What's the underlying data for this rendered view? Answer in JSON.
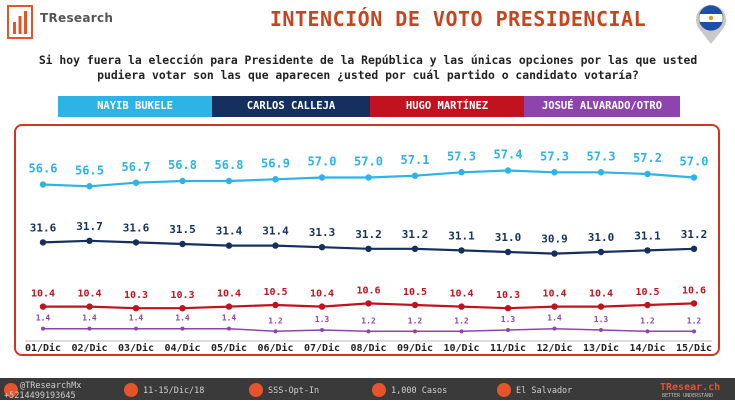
{
  "header": {
    "brand": "TResearch",
    "title": "INTENCIÓN DE VOTO PRESIDENCIAL"
  },
  "question": "Si hoy fuera la elección para Presidente de la República y las únicas opciones por las que usted pudiera votar son las que aparecen ¿usted por cuál partido o candidato votaría?",
  "colors": {
    "accent": "#c8441f",
    "frame": "#d1351f",
    "footer": "#3a3a3a"
  },
  "chart_data": {
    "type": "line",
    "title": "INTENCIÓN DE VOTO PRESIDENCIAL",
    "categories": [
      "01/Dic",
      "02/Dic",
      "03/Dic",
      "04/Dic",
      "05/Dic",
      "06/Dic",
      "07/Dic",
      "08/Dic",
      "09/Dic",
      "10/Dic",
      "11/Dic",
      "12/Dic",
      "13/Dic",
      "14/Dic",
      "15/Dic"
    ],
    "legend_position": "top",
    "grid": false,
    "series": [
      {
        "name": "NAYIB BUKELE",
        "color": "#2db3e6",
        "values": [
          56.6,
          56.5,
          56.7,
          56.8,
          56.8,
          56.9,
          57.0,
          57.0,
          57.1,
          57.3,
          57.4,
          57.3,
          57.3,
          57.2,
          57.0
        ]
      },
      {
        "name": "CARLOS CALLEJA",
        "color": "#15305f",
        "values": [
          31.6,
          31.7,
          31.6,
          31.5,
          31.4,
          31.4,
          31.3,
          31.2,
          31.2,
          31.1,
          31.0,
          30.9,
          31.0,
          31.1,
          31.2
        ]
      },
      {
        "name": "HUGO MARTÍNEZ",
        "color": "#c1121f",
        "values": [
          10.4,
          10.4,
          10.3,
          10.3,
          10.4,
          10.5,
          10.4,
          10.6,
          10.5,
          10.4,
          10.3,
          10.4,
          10.4,
          10.5,
          10.6
        ]
      },
      {
        "name": "JOSUÉ ALVARADO/OTRO",
        "color": "#8e44ad",
        "values": [
          1.4,
          1.4,
          1.4,
          1.4,
          1.4,
          1.2,
          1.3,
          1.2,
          1.2,
          1.2,
          1.3,
          1.4,
          1.3,
          1.2,
          1.2
        ]
      }
    ]
  },
  "footer": {
    "twitter": "@TResearchMx",
    "phone": "+5214499193645",
    "dates": "11-15/Dic/18",
    "method": "SSS-Opt-In",
    "sample": "1,000 Casos",
    "place": "El Salvador",
    "site": "TResear.ch",
    "tagline": "BETTER UNDERSTAND"
  }
}
